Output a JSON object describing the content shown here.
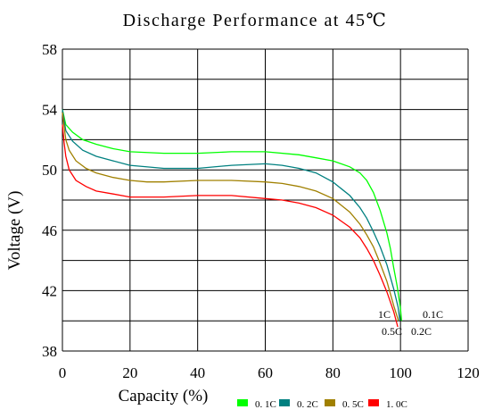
{
  "chart_data": {
    "type": "line",
    "title": "Discharge Performance at 45℃",
    "xlabel": "Capacity (%)",
    "ylabel": "Voltage (V)",
    "xlim": [
      0,
      120
    ],
    "ylim": [
      38,
      58
    ],
    "xticks": [
      0,
      20,
      40,
      60,
      80,
      100,
      120
    ],
    "yticks": [
      38,
      42,
      46,
      50,
      54,
      58
    ],
    "grid": true,
    "legend_position": "bottom",
    "series": [
      {
        "name": "0. 1C",
        "color": "#00ff00",
        "x": [
          0,
          1,
          3,
          6,
          10,
          15,
          20,
          30,
          40,
          50,
          60,
          70,
          75,
          80,
          85,
          88,
          90,
          92,
          94,
          96,
          97,
          98,
          99,
          100,
          100.3
        ],
        "y": [
          54.0,
          53.0,
          52.5,
          52.0,
          51.7,
          51.4,
          51.2,
          51.1,
          51.1,
          51.2,
          51.2,
          51.0,
          50.8,
          50.6,
          50.2,
          49.8,
          49.3,
          48.5,
          47.3,
          45.8,
          44.8,
          43.5,
          42.3,
          40.8,
          40.0
        ]
      },
      {
        "name": "0. 2C",
        "color": "#008080",
        "x": [
          0,
          1,
          3,
          6,
          10,
          15,
          20,
          30,
          40,
          50,
          60,
          65,
          70,
          75,
          80,
          85,
          88,
          90,
          92,
          94,
          96,
          98,
          99.3,
          99.8
        ],
        "y": [
          54.0,
          52.6,
          51.9,
          51.3,
          50.9,
          50.6,
          50.3,
          50.1,
          50.1,
          50.3,
          50.4,
          50.3,
          50.1,
          49.8,
          49.2,
          48.3,
          47.5,
          46.8,
          45.9,
          44.9,
          43.7,
          42.1,
          40.9,
          40.0
        ]
      },
      {
        "name": "0. 5C",
        "color": "#a08000",
        "x": [
          0,
          1,
          2,
          4,
          7,
          10,
          15,
          20,
          25,
          30,
          40,
          50,
          60,
          65,
          70,
          75,
          80,
          85,
          88,
          90,
          92,
          94,
          96,
          98,
          99.4
        ],
        "y": [
          53.8,
          52.0,
          51.3,
          50.6,
          50.1,
          49.8,
          49.5,
          49.3,
          49.2,
          49.2,
          49.3,
          49.3,
          49.2,
          49.1,
          48.9,
          48.6,
          48.1,
          47.2,
          46.4,
          45.7,
          44.9,
          43.8,
          42.6,
          41.0,
          40.0
        ]
      },
      {
        "name": "1. 0C",
        "color": "#ff0000",
        "x": [
          0,
          0.5,
          1,
          2,
          4,
          7,
          10,
          15,
          20,
          30,
          40,
          50,
          60,
          65,
          70,
          75,
          80,
          85,
          88,
          90,
          92,
          94,
          96,
          98,
          99.2
        ],
        "y": [
          53.0,
          51.8,
          50.9,
          50.0,
          49.3,
          48.9,
          48.6,
          48.4,
          48.2,
          48.2,
          48.3,
          48.3,
          48.1,
          48.0,
          47.8,
          47.5,
          47.0,
          46.2,
          45.5,
          44.8,
          44.0,
          43.0,
          41.9,
          40.6,
          39.6
        ]
      }
    ],
    "annotations": [
      "1C",
      "0.1C",
      "0.5C",
      "0.2C"
    ]
  }
}
